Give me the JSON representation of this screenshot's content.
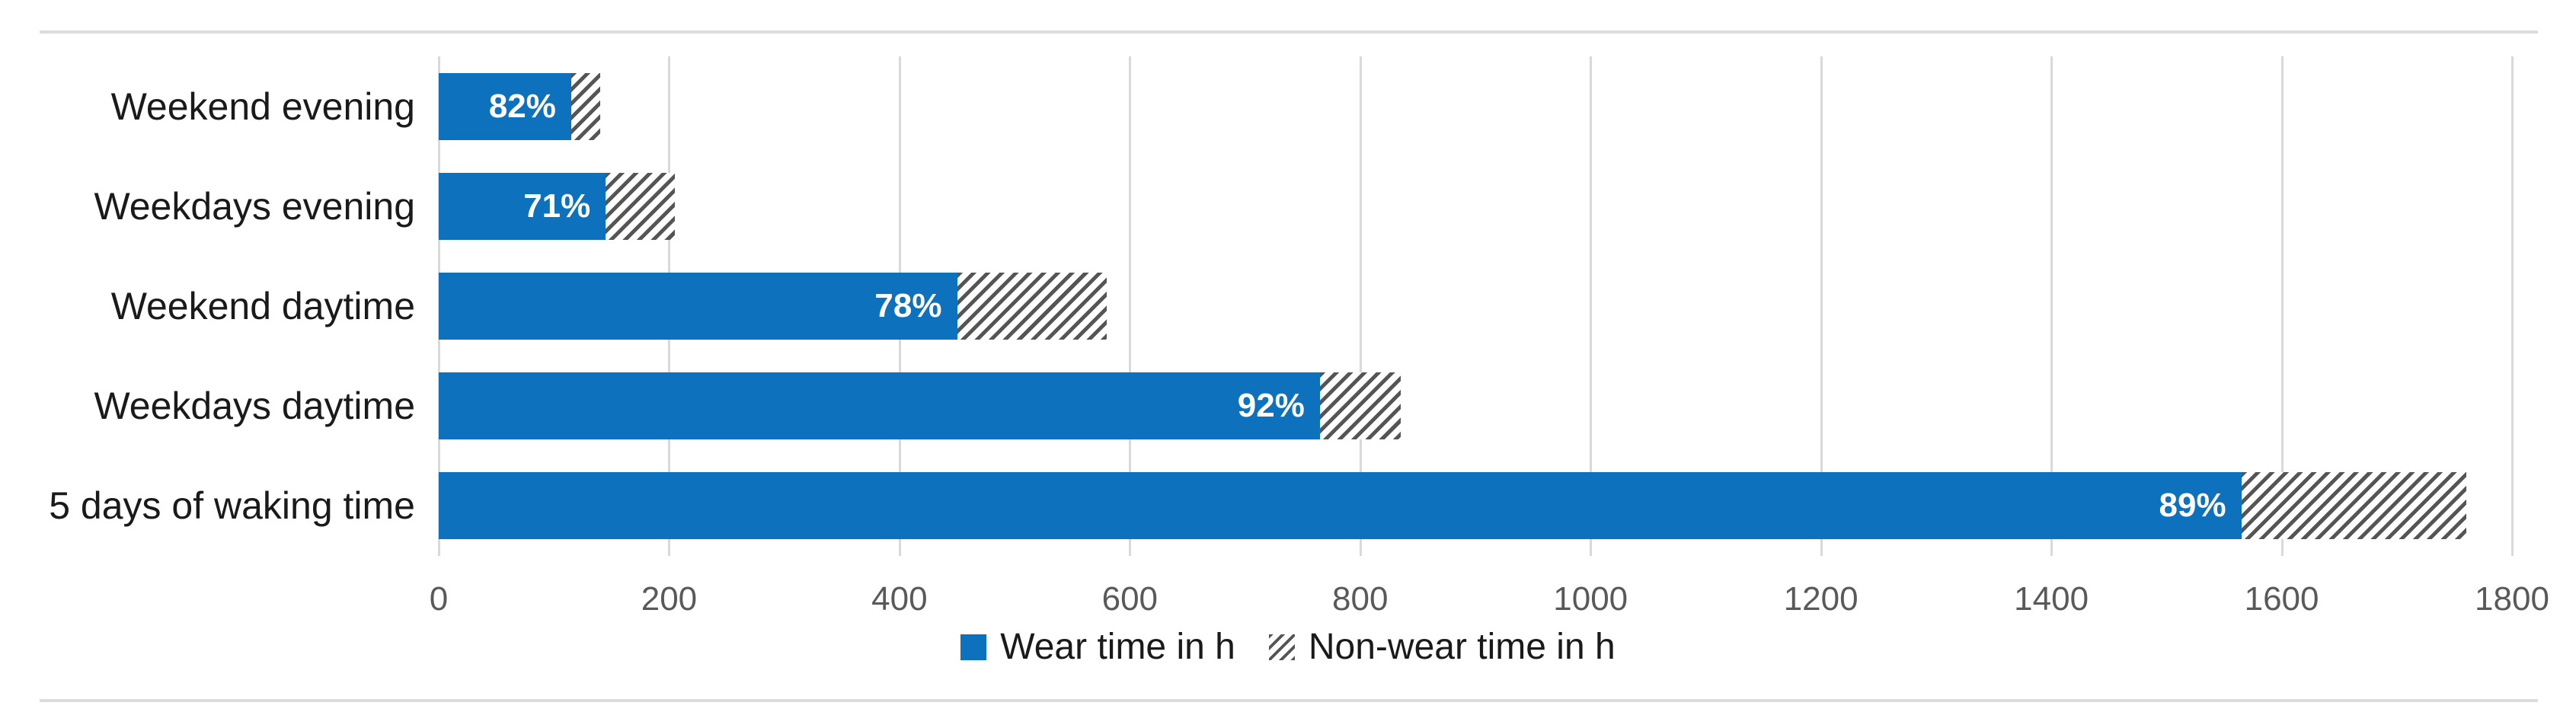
{
  "chart_data": {
    "type": "bar",
    "orientation": "horizontal",
    "stacked": true,
    "title": "",
    "xlabel": "",
    "ylabel": "",
    "categories": [
      "Weekend evening",
      "Weekdays evening",
      "Weekend daytime",
      "Weekdays daytime",
      "5 days of waking time"
    ],
    "series": [
      {
        "name": "Wear time in h",
        "values": [
          115,
          145,
          450,
          765,
          1565
        ]
      },
      {
        "name": "Non-wear time in h",
        "values": [
          25,
          60,
          130,
          70,
          195
        ]
      }
    ],
    "bar_labels": [
      "82%",
      "71%",
      "78%",
      "92%",
      "89%"
    ],
    "xlim": [
      0,
      1800
    ],
    "x_ticks": [
      0,
      200,
      400,
      600,
      800,
      1000,
      1200,
      1400,
      1600,
      1800
    ],
    "grid": true,
    "legend_position": "bottom",
    "colors": {
      "wear_fill": "#0e71bd",
      "nonwear_stripe": "#555555",
      "nonwear_background": "#ffffff",
      "gridline": "#d9d9d9",
      "tick_text": "#595959",
      "category_text": "#1a1a1a",
      "bar_label_text": "#ffffff",
      "border_rule": "#dcdcdc"
    }
  },
  "legend": {
    "items": [
      {
        "label": "Wear time in h",
        "swatch": "solid"
      },
      {
        "label": "Non-wear time in h",
        "swatch": "hatch"
      }
    ]
  }
}
